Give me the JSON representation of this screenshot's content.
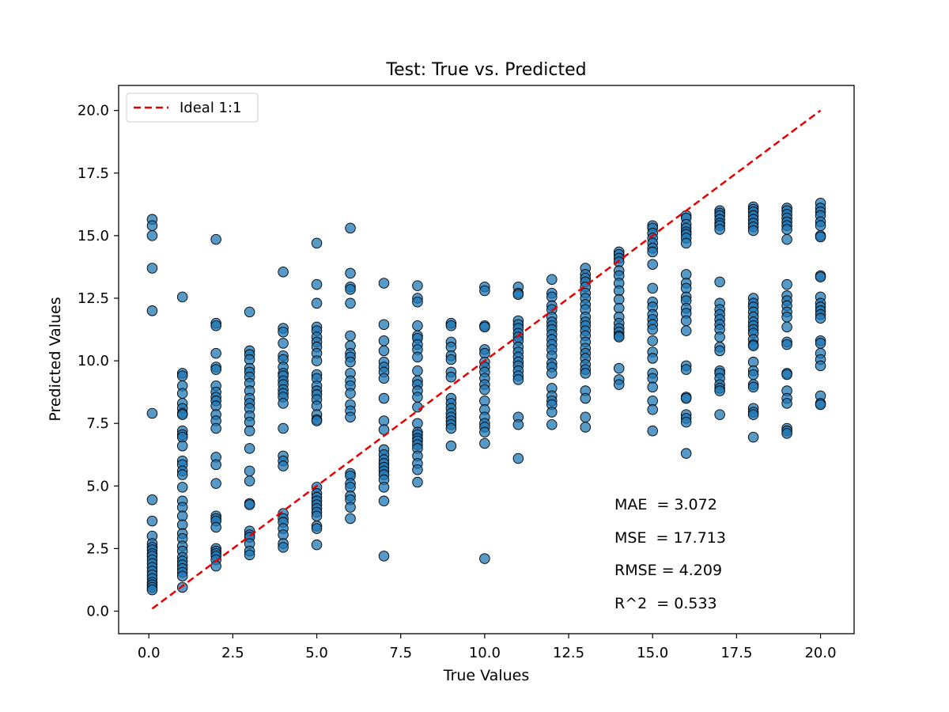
{
  "chart_data": {
    "type": "scatter",
    "title": "Test: True vs. Predicted",
    "xlabel": "True Values",
    "ylabel": "Predicted Values",
    "xlim": [
      -0.9,
      21.0
    ],
    "ylim": [
      -0.9,
      21.0
    ],
    "xticks": [
      {
        "value": 0,
        "label": "0.0"
      },
      {
        "value": 2.5,
        "label": "2.5"
      },
      {
        "value": 5,
        "label": "5.0"
      },
      {
        "value": 7.5,
        "label": "7.5"
      },
      {
        "value": 10,
        "label": "10.0"
      },
      {
        "value": 12.5,
        "label": "12.5"
      },
      {
        "value": 15,
        "label": "15.0"
      },
      {
        "value": 17.5,
        "label": "17.5"
      },
      {
        "value": 20,
        "label": "20.0"
      }
    ],
    "yticks": [
      {
        "value": 0,
        "label": "0.0"
      },
      {
        "value": 2.5,
        "label": "2.5"
      },
      {
        "value": 5,
        "label": "5.0"
      },
      {
        "value": 7.5,
        "label": "7.5"
      },
      {
        "value": 10,
        "label": "10.0"
      },
      {
        "value": 12.5,
        "label": "12.5"
      },
      {
        "value": 15,
        "label": "15.0"
      },
      {
        "value": 17.5,
        "label": "17.5"
      },
      {
        "value": 20,
        "label": "20.0"
      }
    ],
    "grid": false,
    "legend": {
      "placement": "top-left",
      "entries": [
        {
          "label": "Ideal 1:1",
          "color": "#e60000",
          "style": "dashed"
        }
      ]
    },
    "ideal_line": {
      "x": [
        0.1,
        20
      ],
      "y": [
        0.1,
        20
      ],
      "color": "#e60000"
    },
    "point_color": "#1f77b4",
    "point_edge_color": "#000000",
    "stats": [
      "MAE  = 3.072",
      "MSE  = 17.713",
      "RMSE = 4.209",
      "R^2  = 0.533"
    ],
    "series": [
      {
        "x": 0.1,
        "y": [
          15.65,
          15.4,
          15.0,
          13.7,
          12.0,
          7.9,
          4.45,
          3.6,
          3.0,
          2.7,
          2.55,
          2.45,
          2.3,
          2.2,
          2.05,
          1.9,
          1.75,
          1.6,
          1.45,
          1.3,
          1.15,
          1.05,
          0.95,
          0.85
        ]
      },
      {
        "x": 1,
        "y": [
          12.55,
          9.5,
          9.4,
          9.0,
          8.7,
          8.3,
          8.1,
          7.9,
          7.85,
          7.2,
          7.05,
          6.95,
          6.6,
          6.0,
          5.85,
          5.6,
          5.45,
          4.95,
          4.4,
          4.15,
          3.8,
          3.45,
          3.1,
          2.9,
          2.6,
          2.4,
          2.15,
          2.0,
          1.85,
          1.7,
          1.55,
          1.4,
          0.95
        ]
      },
      {
        "x": 2,
        "y": [
          14.85,
          11.5,
          11.4,
          10.3,
          9.75,
          9.65,
          9.0,
          8.75,
          8.55,
          8.4,
          8.2,
          7.85,
          7.6,
          7.3,
          6.15,
          5.85,
          5.1,
          3.8,
          3.7,
          3.6,
          3.35,
          2.5,
          2.4,
          2.3,
          2.2,
          2.05,
          1.8
        ]
      },
      {
        "x": 3,
        "y": [
          11.95,
          10.4,
          10.25,
          10.05,
          9.7,
          9.55,
          9.35,
          9.1,
          8.8,
          8.5,
          8.3,
          8.1,
          7.8,
          7.55,
          7.2,
          6.5,
          5.6,
          5.2,
          4.3,
          4.25,
          3.2,
          3.05,
          2.95,
          2.7,
          2.4,
          2.25
        ]
      },
      {
        "x": 4,
        "y": [
          13.55,
          11.3,
          11.15,
          10.7,
          10.2,
          10.05,
          9.75,
          9.5,
          9.4,
          9.2,
          9.05,
          8.85,
          8.7,
          8.55,
          8.3,
          7.3,
          6.2,
          6.0,
          5.8,
          3.9,
          3.7,
          3.55,
          3.3,
          3.05,
          2.7,
          2.55
        ]
      },
      {
        "x": 5,
        "y": [
          14.7,
          13.05,
          12.3,
          11.35,
          11.2,
          10.95,
          10.75,
          10.55,
          10.3,
          10.0,
          9.45,
          9.3,
          9.0,
          8.8,
          8.65,
          8.45,
          8.2,
          7.85,
          7.65,
          7.6,
          4.95,
          4.7,
          4.55,
          4.4,
          4.25,
          4.1,
          3.95,
          3.8,
          3.4,
          3.3,
          2.65
        ]
      },
      {
        "x": 6,
        "y": [
          15.3,
          13.5,
          12.95,
          12.85,
          12.3,
          11.0,
          10.6,
          10.3,
          10.15,
          9.95,
          9.5,
          9.2,
          9.0,
          8.7,
          8.25,
          8.0,
          7.75,
          5.5,
          5.4,
          5.1,
          4.95,
          4.6,
          4.45,
          4.15,
          3.7
        ]
      },
      {
        "x": 7,
        "y": [
          13.1,
          11.45,
          10.8,
          10.4,
          9.95,
          9.75,
          9.55,
          9.3,
          8.5,
          7.6,
          7.25,
          6.45,
          6.25,
          6.05,
          5.9,
          5.75,
          5.6,
          5.45,
          5.25,
          4.95,
          4.4,
          2.2
        ]
      },
      {
        "x": 8,
        "y": [
          13.0,
          12.5,
          12.35,
          11.4,
          11.0,
          10.9,
          10.65,
          10.45,
          10.15,
          9.6,
          9.2,
          9.05,
          8.8,
          8.55,
          8.15,
          7.5,
          7.15,
          7.05,
          6.9,
          6.8,
          6.65,
          6.5,
          6.2,
          5.9,
          5.65,
          5.15
        ]
      },
      {
        "x": 9,
        "y": [
          11.5,
          11.4,
          10.75,
          10.55,
          10.2,
          10.05,
          9.55,
          9.35,
          8.5,
          8.3,
          8.1,
          7.9,
          7.75,
          7.6,
          7.45,
          7.3,
          6.6
        ]
      },
      {
        "x": 10,
        "y": [
          12.95,
          12.8,
          11.4,
          11.35,
          10.45,
          10.3,
          9.95,
          9.75,
          9.55,
          9.3,
          9.05,
          8.85,
          8.4,
          8.05,
          7.75,
          7.5,
          7.35,
          7.15,
          6.7,
          2.1
        ]
      },
      {
        "x": 11,
        "y": [
          12.95,
          12.7,
          12.65,
          11.6,
          11.45,
          11.3,
          11.1,
          10.95,
          10.8,
          10.55,
          10.35,
          10.15,
          9.95,
          9.8,
          9.6,
          9.4,
          9.25,
          7.75,
          7.45,
          6.1
        ]
      },
      {
        "x": 12,
        "y": [
          13.25,
          12.7,
          12.55,
          12.2,
          12.05,
          11.75,
          11.55,
          11.4,
          11.25,
          11.05,
          10.85,
          10.65,
          10.45,
          10.2,
          9.9,
          9.75,
          9.5,
          8.9,
          8.6,
          8.4,
          8.25,
          7.95,
          7.45
        ]
      },
      {
        "x": 13,
        "y": [
          13.7,
          13.45,
          13.3,
          13.15,
          12.95,
          12.7,
          12.5,
          12.25,
          12.05,
          11.75,
          11.55,
          11.4,
          11.2,
          11.0,
          10.75,
          10.5,
          10.3,
          10.1,
          9.85,
          9.65,
          9.5,
          8.8,
          8.5,
          7.75,
          7.35
        ]
      },
      {
        "x": 14,
        "y": [
          14.35,
          14.25,
          14.1,
          13.95,
          13.6,
          13.4,
          13.1,
          12.8,
          12.45,
          12.1,
          11.75,
          11.5,
          11.3,
          11.15,
          11.0,
          10.95,
          9.7,
          9.25,
          9.05
        ]
      },
      {
        "x": 15,
        "y": [
          15.4,
          15.3,
          15.1,
          14.9,
          14.7,
          14.5,
          14.35,
          13.85,
          12.9,
          12.35,
          12.15,
          11.85,
          11.65,
          11.45,
          11.25,
          10.8,
          10.35,
          10.1,
          9.5,
          9.3,
          8.95,
          8.4,
          8.05,
          7.2
        ]
      },
      {
        "x": 16,
        "y": [
          15.8,
          15.7,
          15.45,
          15.3,
          15.15,
          15.05,
          14.9,
          14.7,
          13.45,
          13.1,
          12.9,
          12.55,
          12.4,
          12.1,
          11.9,
          11.6,
          11.2,
          9.8,
          9.65,
          8.55,
          8.5,
          7.85,
          7.7,
          7.55,
          6.3
        ]
      },
      {
        "x": 17,
        "y": [
          16.0,
          15.9,
          15.8,
          15.65,
          15.5,
          15.4,
          15.25,
          13.15,
          12.3,
          12.05,
          11.85,
          11.65,
          11.45,
          11.25,
          10.95,
          10.55,
          10.4,
          9.6,
          9.5,
          9.3,
          9.05,
          8.9,
          8.8,
          7.85
        ]
      },
      {
        "x": 18,
        "y": [
          16.15,
          16.05,
          15.95,
          15.8,
          15.65,
          15.5,
          15.35,
          15.2,
          12.5,
          12.3,
          12.15,
          11.95,
          11.75,
          11.55,
          11.4,
          11.25,
          11.1,
          10.85,
          10.65,
          10.6,
          9.95,
          9.6,
          9.45,
          9.05,
          8.95,
          8.1,
          7.95,
          7.85,
          6.95
        ]
      },
      {
        "x": 19,
        "y": [
          16.1,
          16.0,
          15.85,
          15.7,
          15.55,
          15.4,
          15.25,
          14.85,
          13.05,
          12.6,
          12.4,
          12.2,
          11.95,
          11.75,
          11.35,
          10.75,
          10.65,
          9.5,
          9.45,
          8.8,
          8.5,
          8.3,
          7.3,
          7.2,
          7.1
        ]
      },
      {
        "x": 20,
        "y": [
          16.3,
          16.1,
          15.95,
          15.8,
          15.55,
          15.4,
          15.0,
          14.95,
          13.4,
          13.35,
          12.55,
          12.3,
          12.15,
          12.0,
          11.85,
          11.7,
          10.8,
          10.7,
          10.3,
          10.05,
          9.8,
          8.6,
          8.3,
          8.25
        ]
      }
    ]
  }
}
